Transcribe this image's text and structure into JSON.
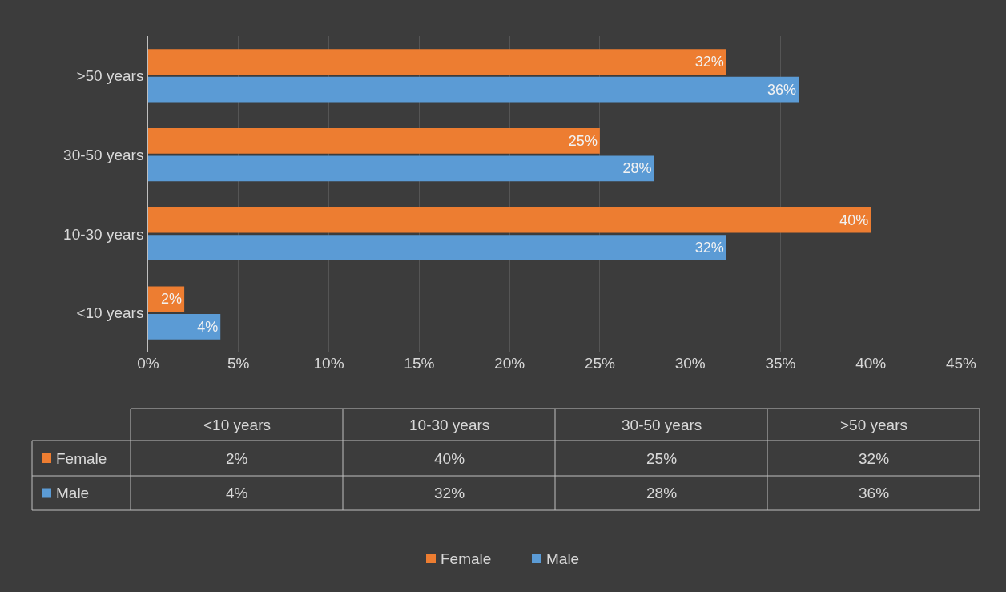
{
  "chart_data": {
    "type": "bar",
    "orientation": "horizontal",
    "categories": [
      ">50 years",
      "30-50 years",
      "10-30 years",
      "<10 years"
    ],
    "series": [
      {
        "name": "Female",
        "color": "#ed7d31",
        "values": [
          32,
          25,
          40,
          2
        ],
        "value_labels": [
          "32%",
          "25%",
          "40%",
          "2%"
        ]
      },
      {
        "name": "Male",
        "color": "#5b9bd5",
        "values": [
          36,
          28,
          32,
          4
        ],
        "value_labels": [
          "36%",
          "28%",
          "32%",
          "4%"
        ]
      }
    ],
    "xlim": [
      0,
      45
    ],
    "xticks": [
      {
        "value": 0,
        "label": "0%"
      },
      {
        "value": 5,
        "label": "5%"
      },
      {
        "value": 10,
        "label": "10%"
      },
      {
        "value": 15,
        "label": "15%"
      },
      {
        "value": 20,
        "label": "20%"
      },
      {
        "value": 25,
        "label": "25%"
      },
      {
        "value": 30,
        "label": "30%"
      },
      {
        "value": 35,
        "label": "35%"
      },
      {
        "value": 40,
        "label": "40%"
      },
      {
        "value": 45,
        "label": "45%"
      }
    ],
    "grid": "x",
    "legend": "bottom"
  }
}
